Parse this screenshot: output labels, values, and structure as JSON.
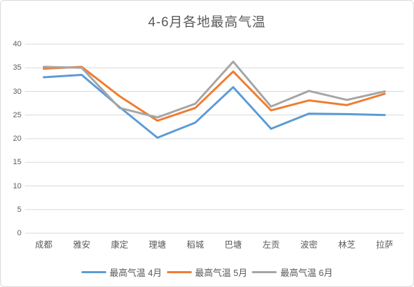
{
  "chart_data": {
    "type": "line",
    "title": "4-6月各地最高气温",
    "categories": [
      "成都",
      "雅安",
      "康定",
      "理塘",
      "稻城",
      "巴塘",
      "左贡",
      "波密",
      "林芝",
      "拉萨"
    ],
    "series": [
      {
        "name": "最高气温 4月",
        "color": "#5B9BD5",
        "values": [
          33.0,
          33.5,
          26.7,
          20.2,
          23.4,
          30.9,
          22.1,
          25.3,
          25.2,
          25.0
        ]
      },
      {
        "name": "最高气温 5月",
        "color": "#ED7D31",
        "values": [
          34.8,
          35.2,
          29.0,
          23.8,
          26.5,
          34.2,
          26.0,
          28.1,
          27.1,
          29.5
        ]
      },
      {
        "name": "最高气温 6月",
        "color": "#A5A5A5",
        "values": [
          35.2,
          35.0,
          26.5,
          24.5,
          27.4,
          36.3,
          26.8,
          30.1,
          28.2,
          30.0
        ]
      }
    ],
    "xlabel": "",
    "ylabel": "",
    "ylim": [
      0,
      40
    ],
    "yticks": [
      0,
      5,
      10,
      15,
      20,
      25,
      30,
      35,
      40
    ],
    "grid": true,
    "legend_position": "bottom",
    "gridline_color": "#D9D9D9",
    "text_color": "#595959"
  }
}
